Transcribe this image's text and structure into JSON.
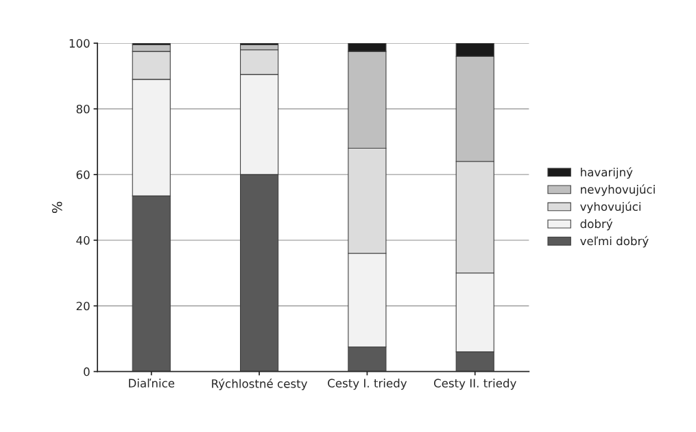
{
  "chart_data": {
    "type": "bar",
    "stacked": true,
    "ylabel": "%",
    "categories": [
      "Diaľnice",
      "Rýchlostné cesty",
      "Cesty I. triedy",
      "Cesty II. triedy"
    ],
    "series": [
      {
        "name": "veľmi dobrý",
        "color": "#595959",
        "values": [
          53.5,
          60,
          7.5,
          6
        ]
      },
      {
        "name": "dobrý",
        "color": "#f2f2f2",
        "values": [
          35.5,
          30.5,
          28.5,
          24
        ]
      },
      {
        "name": "vyhovujúci",
        "color": "#dcdcdc",
        "values": [
          8.5,
          7.5,
          32,
          34
        ]
      },
      {
        "name": "nevyhovujúci",
        "color": "#bfbfbf",
        "values": [
          2,
          1.5,
          29.5,
          32
        ]
      },
      {
        "name": "havarijný",
        "color": "#1a1a1a",
        "values": [
          0.5,
          0.5,
          2.5,
          4
        ]
      }
    ],
    "ylim": [
      0,
      100
    ],
    "yticks": [
      0,
      20,
      40,
      60,
      80,
      100
    ],
    "grid": "y",
    "legend": "right"
  }
}
